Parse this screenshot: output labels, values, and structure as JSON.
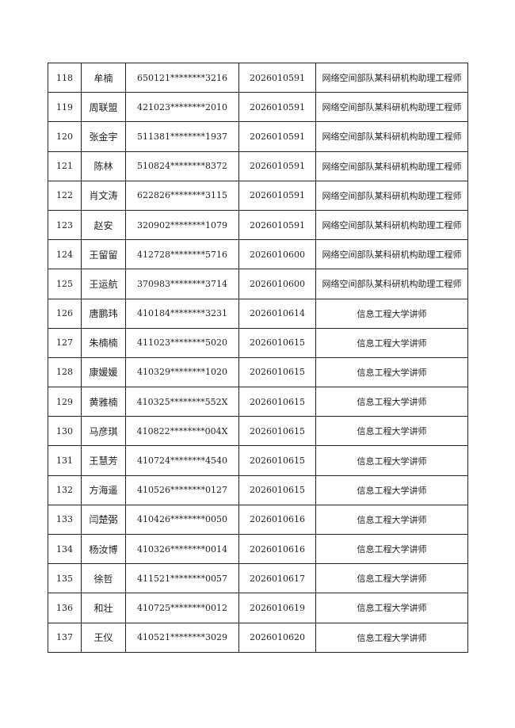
{
  "rows": [
    [
      "118",
      "牟楠",
      "650121********3216",
      "2026010591",
      "网络空间部队某科研机构助理工程师"
    ],
    [
      "119",
      "周联盟",
      "421023********2010",
      "2026010591",
      "网络空间部队某科研机构助理工程师"
    ],
    [
      "120",
      "张金宇",
      "511381********1937",
      "2026010591",
      "网络空间部队某科研机构助理工程师"
    ],
    [
      "121",
      "陈林",
      "510824********8372",
      "2026010591",
      "网络空间部队某科研机构助理工程师"
    ],
    [
      "122",
      "肖文涛",
      "622826********3115",
      "2026010591",
      "网络空间部队某科研机构助理工程师"
    ],
    [
      "123",
      "赵安",
      "320902********1079",
      "2026010591",
      "网络空间部队某科研机构助理工程师"
    ],
    [
      "124",
      "王留留",
      "412728********5716",
      "2026010600",
      "网络空间部队某科研机构助理工程师"
    ],
    [
      "125",
      "王运航",
      "370983********3714",
      "2026010600",
      "网络空间部队某科研机构助理工程师"
    ],
    [
      "126",
      "唐鹏玮",
      "410184********3231",
      "2026010614",
      "信息工程大学讲师"
    ],
    [
      "127",
      "朱楠楠",
      "411023********5020",
      "2026010615",
      "信息工程大学讲师"
    ],
    [
      "128",
      "康媛媛",
      "410329********1020",
      "2026010615",
      "信息工程大学讲师"
    ],
    [
      "129",
      "黄雅楠",
      "410325********552X",
      "2026010615",
      "信息工程大学讲师"
    ],
    [
      "130",
      "马彦琪",
      "410822********004X",
      "2026010615",
      "信息工程大学讲师"
    ],
    [
      "131",
      "王慧芳",
      "410724********4540",
      "2026010615",
      "信息工程大学讲师"
    ],
    [
      "132",
      "方海遥",
      "410526********0127",
      "2026010615",
      "信息工程大学讲师"
    ],
    [
      "133",
      "闫楚弼",
      "410426********0050",
      "2026010616",
      "信息工程大学讲师"
    ],
    [
      "134",
      "杨汝博",
      "410326********0014",
      "2026010616",
      "信息工程大学讲师"
    ],
    [
      "135",
      "徐哲",
      "411521********0057",
      "2026010617",
      "信息工程大学讲师"
    ],
    [
      "136",
      "和壮",
      "410725********0012",
      "2026010619",
      "信息工程大学讲师"
    ],
    [
      "137",
      "王仪",
      "410521********3029",
      "2026010620",
      "信息工程大学讲师"
    ]
  ]
}
